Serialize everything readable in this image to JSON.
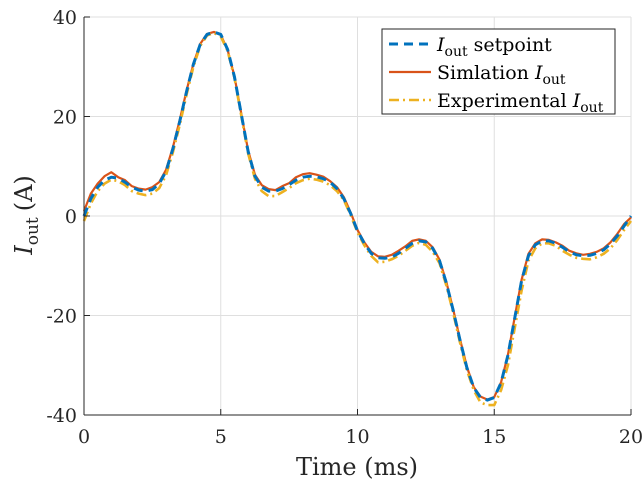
{
  "chart_data": {
    "type": "line",
    "xlabel": "Time (ms)",
    "ylabel_main": "I",
    "ylabel_sub": "out",
    "ylabel_unit": "(A)",
    "xlim": [
      0,
      20
    ],
    "ylim": [
      -40,
      40
    ],
    "xticks": [
      0,
      5,
      10,
      15,
      20
    ],
    "yticks": [
      -40,
      -20,
      0,
      20,
      40
    ],
    "xtick_labels": [
      "0",
      "5",
      "10",
      "15",
      "20"
    ],
    "ytick_labels": [
      "-40",
      "-20",
      "0",
      "20",
      "40"
    ],
    "grid": true,
    "legend_position": "top-right",
    "series": [
      {
        "name": "I_out setpoint",
        "legend_label_main": "I",
        "legend_label_sub": "out",
        "legend_label_suffix": " setpoint",
        "legend_label_prefix": "",
        "color": "#0072BD",
        "style": "dashed",
        "x": [
          0,
          0.25,
          0.5,
          0.75,
          1.0,
          1.25,
          1.5,
          1.75,
          2.0,
          2.25,
          2.5,
          2.75,
          3.0,
          3.25,
          3.5,
          3.75,
          4.0,
          4.25,
          4.5,
          4.75,
          5.0,
          5.25,
          5.5,
          5.75,
          6.0,
          6.25,
          6.5,
          6.75,
          7.0,
          7.25,
          7.5,
          7.75,
          8.0,
          8.25,
          8.5,
          8.75,
          9.0,
          9.25,
          9.5,
          9.75,
          10.0,
          10.25,
          10.5,
          10.75,
          11.0,
          11.25,
          11.5,
          11.75,
          12.0,
          12.25,
          12.5,
          12.75,
          13.0,
          13.25,
          13.5,
          13.75,
          14.0,
          14.25,
          14.5,
          14.75,
          15.0,
          15.25,
          15.5,
          15.75,
          16.0,
          16.25,
          16.5,
          16.75,
          17.0,
          17.25,
          17.5,
          17.75,
          18.0,
          18.25,
          18.5,
          18.75,
          19.0,
          19.25,
          19.5,
          19.75,
          20.0
        ],
        "y": [
          0,
          3.5,
          5.8,
          7.2,
          7.8,
          7.6,
          6.8,
          5.8,
          5.2,
          5.0,
          5.3,
          6.5,
          9.0,
          13.5,
          19.0,
          25.0,
          30.5,
          34.5,
          36.5,
          37.0,
          36.5,
          33.5,
          28.0,
          20.5,
          13.0,
          8.0,
          5.8,
          5.0,
          5.0,
          5.5,
          6.3,
          7.2,
          7.8,
          8.0,
          7.9,
          7.5,
          6.8,
          5.5,
          3.5,
          0.5,
          -3.0,
          -5.5,
          -7.5,
          -8.4,
          -8.5,
          -8.3,
          -7.5,
          -6.5,
          -5.5,
          -5.0,
          -5.2,
          -6.5,
          -9.0,
          -13.5,
          -19.0,
          -25.0,
          -30.5,
          -34.5,
          -36.5,
          -37.0,
          -36.5,
          -33.5,
          -28.0,
          -20.5,
          -13.0,
          -8.0,
          -5.8,
          -5.0,
          -5.0,
          -5.5,
          -6.3,
          -7.2,
          -7.8,
          -8.0,
          -7.9,
          -7.5,
          -6.8,
          -5.6,
          -4.0,
          -2.0,
          0.0
        ]
      },
      {
        "name": "Simlation I_out",
        "legend_label_prefix": "Simlation ",
        "legend_label_main": "I",
        "legend_label_sub": "out",
        "legend_label_suffix": "",
        "color": "#D95319",
        "style": "solid",
        "x": [
          0,
          0.25,
          0.5,
          0.75,
          1.0,
          1.25,
          1.5,
          1.75,
          2.0,
          2.25,
          2.5,
          2.75,
          3.0,
          3.25,
          3.5,
          3.75,
          4.0,
          4.25,
          4.5,
          4.75,
          5.0,
          5.25,
          5.5,
          5.75,
          6.0,
          6.25,
          6.5,
          6.75,
          7.0,
          7.25,
          7.5,
          7.75,
          8.0,
          8.25,
          8.5,
          8.75,
          9.0,
          9.25,
          9.5,
          9.75,
          10.0,
          10.25,
          10.5,
          10.75,
          11.0,
          11.25,
          11.5,
          11.75,
          12.0,
          12.25,
          12.5,
          12.75,
          13.0,
          13.25,
          13.5,
          13.75,
          14.0,
          14.25,
          14.5,
          14.75,
          15.0,
          15.25,
          15.5,
          15.75,
          16.0,
          16.25,
          16.5,
          16.75,
          17.0,
          17.25,
          17.5,
          17.75,
          18.0,
          18.25,
          18.5,
          18.75,
          19.0,
          19.25,
          19.5,
          19.75,
          20.0
        ],
        "y": [
          1.0,
          4.5,
          6.5,
          8.0,
          8.8,
          7.8,
          7.2,
          6.0,
          5.5,
          5.3,
          5.8,
          6.8,
          9.3,
          13.8,
          19.3,
          25.2,
          30.6,
          34.6,
          36.6,
          37.0,
          36.4,
          33.4,
          28.1,
          20.6,
          13.2,
          8.3,
          6.2,
          5.4,
          5.2,
          6.0,
          6.6,
          7.8,
          8.4,
          8.6,
          8.3,
          7.9,
          7.0,
          5.8,
          3.8,
          0.7,
          -2.8,
          -5.3,
          -7.2,
          -8.1,
          -8.2,
          -7.8,
          -7.0,
          -6.1,
          -5.0,
          -4.7,
          -5.0,
          -6.3,
          -8.8,
          -13.3,
          -18.8,
          -24.8,
          -30.3,
          -34.4,
          -36.3,
          -36.9,
          -36.4,
          -33.4,
          -27.9,
          -20.3,
          -12.8,
          -7.6,
          -5.5,
          -4.7,
          -4.8,
          -5.3,
          -6.0,
          -7.0,
          -7.5,
          -7.8,
          -7.6,
          -7.2,
          -6.5,
          -5.3,
          -3.6,
          -1.6,
          -0.3
        ]
      },
      {
        "name": "Experimental I_out",
        "legend_label_prefix": "Experimental ",
        "legend_label_main": "I",
        "legend_label_sub": "out",
        "legend_label_suffix": "",
        "color": "#EDB120",
        "style": "dashdot",
        "x": [
          0,
          0.25,
          0.5,
          0.75,
          1.0,
          1.25,
          1.5,
          1.75,
          2.0,
          2.25,
          2.5,
          2.75,
          3.0,
          3.25,
          3.5,
          3.75,
          4.0,
          4.25,
          4.5,
          4.75,
          5.0,
          5.25,
          5.5,
          5.75,
          6.0,
          6.25,
          6.5,
          6.75,
          7.0,
          7.25,
          7.5,
          7.75,
          8.0,
          8.25,
          8.5,
          8.75,
          9.0,
          9.25,
          9.5,
          9.75,
          10.0,
          10.25,
          10.5,
          10.75,
          11.0,
          11.25,
          11.5,
          11.75,
          12.0,
          12.25,
          12.5,
          12.75,
          13.0,
          13.25,
          13.5,
          13.75,
          14.0,
          14.25,
          14.5,
          14.75,
          15.0,
          15.25,
          15.5,
          15.75,
          16.0,
          16.25,
          16.5,
          16.75,
          17.0,
          17.25,
          17.5,
          17.75,
          18.0,
          18.25,
          18.5,
          18.75,
          19.0,
          19.25,
          19.5,
          19.75,
          20.0
        ],
        "y": [
          -1.0,
          2.5,
          5.0,
          6.5,
          7.3,
          7.0,
          6.2,
          5.0,
          4.5,
          4.2,
          4.5,
          5.6,
          8.2,
          12.8,
          18.3,
          24.4,
          30.0,
          34.2,
          36.3,
          36.8,
          36.1,
          33.2,
          27.8,
          20.2,
          12.6,
          7.5,
          5.0,
          4.0,
          4.0,
          4.8,
          5.6,
          6.6,
          7.2,
          7.5,
          7.3,
          6.9,
          6.2,
          5.0,
          3.2,
          0.2,
          -3.3,
          -5.9,
          -8.0,
          -9.3,
          -9.2,
          -8.7,
          -8.0,
          -7.0,
          -6.0,
          -5.4,
          -5.8,
          -7.2,
          -9.5,
          -14.0,
          -19.5,
          -25.5,
          -31.0,
          -35.0,
          -37.5,
          -38.0,
          -38.0,
          -35.0,
          -30.0,
          -22.5,
          -15.0,
          -9.0,
          -6.5,
          -5.5,
          -5.5,
          -6.0,
          -7.0,
          -7.8,
          -8.4,
          -8.6,
          -8.7,
          -8.3,
          -7.6,
          -6.5,
          -4.8,
          -2.8,
          -1.0
        ]
      }
    ]
  }
}
